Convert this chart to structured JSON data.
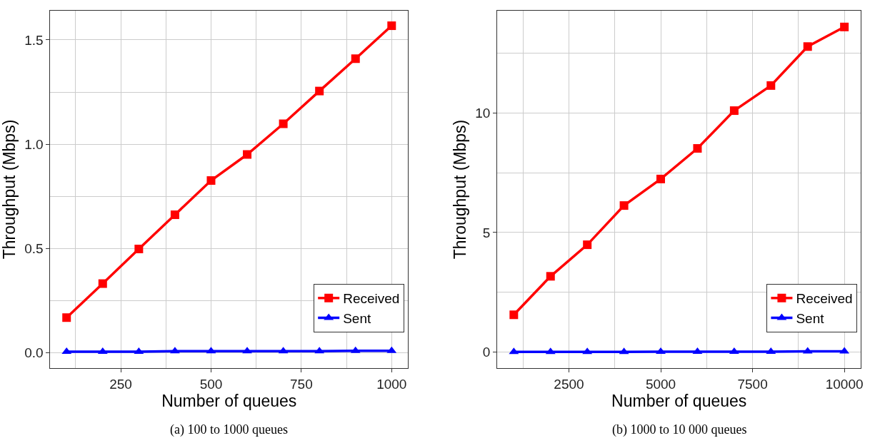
{
  "chart_data": [
    {
      "type": "line",
      "xlabel": "Number of queues",
      "ylabel": "Throughput (Mbps)",
      "annotations": [
        "(a) 100 to 1000 queues"
      ],
      "x": [
        100,
        200,
        300,
        400,
        500,
        600,
        700,
        800,
        900,
        1000
      ],
      "series": [
        {
          "name": "Received",
          "color": "#ff0000",
          "marker": "square",
          "values": [
            0.169,
            0.332,
            0.498,
            0.662,
            0.826,
            0.951,
            1.098,
            1.255,
            1.41,
            1.568
          ]
        },
        {
          "name": "Sent",
          "color": "#0000ff",
          "marker": "triangle",
          "values": [
            0.006,
            0.006,
            0.006,
            0.008,
            0.008,
            0.008,
            0.008,
            0.008,
            0.01,
            0.01
          ]
        }
      ],
      "xlim": [
        55,
        1045
      ],
      "xticks": [
        250,
        500,
        750,
        1000
      ],
      "ylim": [
        -0.073,
        1.64
      ],
      "yticks": [
        {
          "value": 0,
          "label": "0.0"
        },
        0.5,
        {
          "value": 1,
          "label": "1.0"
        },
        1.5
      ],
      "grid": true,
      "legend": "bottom right",
      "line_style": "solid"
    },
    {
      "type": "line",
      "xlabel": "Number of queues",
      "ylabel": "Throughput (Mbps)",
      "annotations": [
        "(b) 1000 to 10 000 queues"
      ],
      "x": [
        1000,
        2000,
        3000,
        4000,
        5000,
        6000,
        7000,
        8000,
        9000,
        10000
      ],
      "series": [
        {
          "name": "Received",
          "color": "#ff0000",
          "marker": "square",
          "values": [
            1.56,
            3.17,
            4.49,
            6.13,
            7.24,
            8.52,
            10.1,
            11.15,
            12.78,
            13.6
          ]
        },
        {
          "name": "Sent",
          "color": "#0000ff",
          "marker": "triangle",
          "values": [
            0.01,
            0.01,
            0.01,
            0.01,
            0.02,
            0.02,
            0.02,
            0.02,
            0.03,
            0.03
          ]
        }
      ],
      "xlim": [
        550,
        10450
      ],
      "xticks": [
        2500,
        5000,
        7500,
        10000
      ],
      "ylim": [
        -0.67,
        14.28
      ],
      "yticks": [
        0,
        5,
        10
      ],
      "grid": true,
      "legend": "bottom right",
      "line_style": "solid"
    }
  ]
}
